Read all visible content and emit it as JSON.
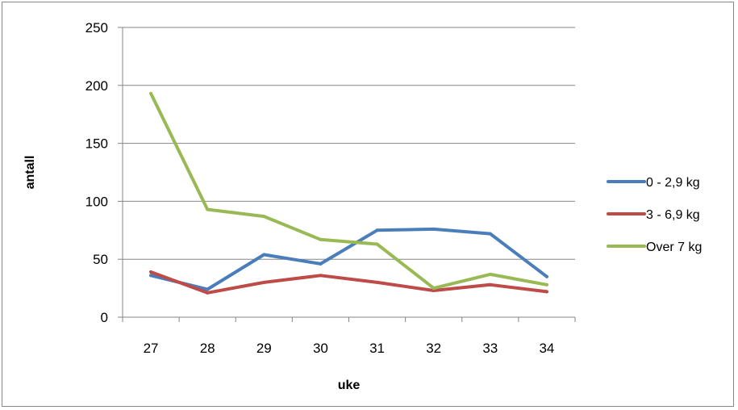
{
  "chart_data": {
    "type": "line",
    "title": "",
    "xlabel": "uke",
    "ylabel": "antall",
    "categories": [
      "27",
      "28",
      "29",
      "30",
      "31",
      "32",
      "33",
      "34"
    ],
    "ylim": [
      0,
      250
    ],
    "yticks": [
      0,
      50,
      100,
      150,
      200,
      250
    ],
    "grid": "horizontal",
    "legend_position": "right",
    "series": [
      {
        "name": "0 - 2,9 kg",
        "color": "#4a7ebb",
        "values": [
          36,
          24,
          54,
          46,
          75,
          76,
          72,
          35
        ]
      },
      {
        "name": "3 - 6,9 kg",
        "color": "#be4b48",
        "values": [
          39,
          21,
          30,
          36,
          30,
          23,
          28,
          22
        ]
      },
      {
        "name": "Over 7 kg",
        "color": "#98b954",
        "values": [
          193,
          93,
          87,
          67,
          63,
          25,
          37,
          28
        ]
      }
    ]
  }
}
